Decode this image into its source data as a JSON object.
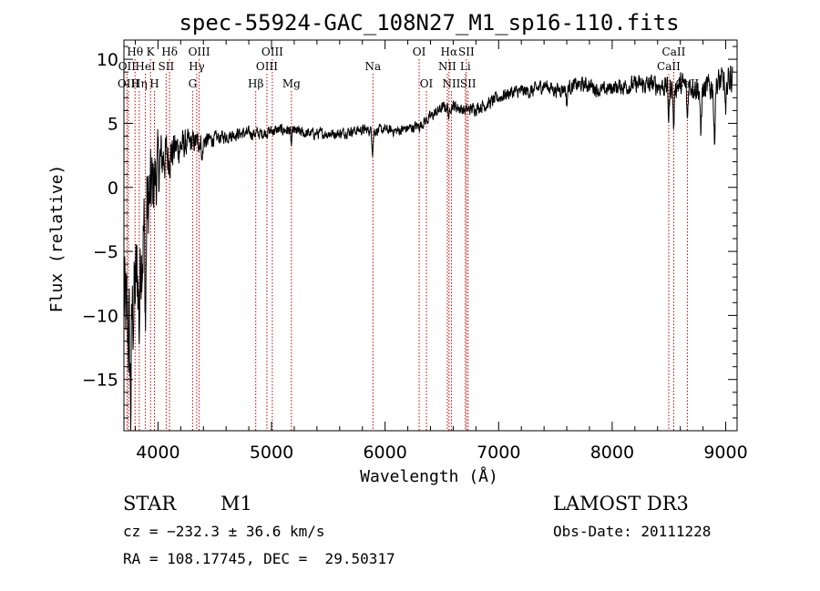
{
  "chart_data": {
    "type": "line",
    "title": "spec-55924-GAC_108N27_M1_sp16-110.fits",
    "xlabel": "Wavelength (Å)",
    "ylabel": "Flux (relative)",
    "xlim": [
      3700,
      9100
    ],
    "ylim": [
      -19,
      11.5
    ],
    "xticks": [
      4000,
      5000,
      6000,
      7000,
      8000,
      9000
    ],
    "xtick_labels": [
      "4000",
      "5000",
      "6000",
      "7000",
      "8000",
      "9000"
    ],
    "yticks": [
      -15,
      -10,
      -5,
      0,
      5,
      10
    ],
    "ytick_labels": [
      "−15",
      "−10",
      "−5",
      "0",
      "5",
      "10"
    ],
    "line_color": "#000000",
    "marker_color": "#cc0000",
    "spectrum_knots": {
      "x": [
        3700,
        3750,
        3800,
        3850,
        3900,
        3950,
        4000,
        4050,
        4100,
        4150,
        4200,
        4300,
        4400,
        4500,
        4600,
        4700,
        4800,
        4900,
        5000,
        5100,
        5200,
        5300,
        5400,
        5500,
        5600,
        5700,
        5800,
        5900,
        6000,
        6100,
        6200,
        6300,
        6400,
        6500,
        6600,
        6700,
        6800,
        6900,
        7000,
        7100,
        7200,
        7300,
        7400,
        7500,
        7600,
        7700,
        7800,
        7900,
        8000,
        8100,
        8200,
        8300,
        8400,
        8500,
        8600,
        8700,
        8800,
        8900,
        9000,
        9100
      ],
      "y": [
        -9,
        -12,
        -8,
        -5,
        -2,
        0,
        1.5,
        2.5,
        2.5,
        3,
        3.2,
        3.5,
        3.6,
        3.8,
        4,
        4.2,
        4.2,
        4.2,
        4.4,
        4.5,
        4.4,
        4.2,
        4.2,
        4.2,
        4.2,
        4.4,
        4.5,
        4.4,
        4.5,
        4.4,
        4.6,
        4.8,
        5.5,
        6.2,
        6.4,
        6.0,
        6.2,
        6.5,
        7,
        7.4,
        7.5,
        7.5,
        8.0,
        7.6,
        7.8,
        8.0,
        8.0,
        7.5,
        7.8,
        7.9,
        8.0,
        8.0,
        8.0,
        7.8,
        8.0,
        8.0,
        7.5,
        8.0,
        8.3,
        9.0
      ]
    },
    "noise_amplitude": {
      "x": [
        3700,
        3900,
        4000,
        4100,
        4300,
        4500,
        5000,
        6000,
        7000,
        8000,
        8500,
        9000,
        9100
      ],
      "amp": [
        7,
        6,
        4,
        2.5,
        1.4,
        0.8,
        0.7,
        0.6,
        0.8,
        0.9,
        1.3,
        1.8,
        2
      ]
    },
    "absorption_features": [
      {
        "x": 3760,
        "depth": 6
      },
      {
        "x": 3835,
        "depth": 5
      },
      {
        "x": 3890,
        "depth": 8
      },
      {
        "x": 4390,
        "depth": 1.5
      },
      {
        "x": 5175,
        "depth": 1.2
      },
      {
        "x": 5890,
        "depth": 1.6
      },
      {
        "x": 6563,
        "depth": 1.0
      },
      {
        "x": 7600,
        "depth": 1.4
      },
      {
        "x": 8498,
        "depth": 2.5
      },
      {
        "x": 8542,
        "depth": 3.5
      },
      {
        "x": 8662,
        "depth": 3.0
      },
      {
        "x": 8780,
        "depth": 4.0
      },
      {
        "x": 8900,
        "depth": 5.0
      },
      {
        "x": 9000,
        "depth": 3.5
      }
    ],
    "spectral_lines": [
      {
        "label": "Hθ",
        "x": 3798,
        "row": 0
      },
      {
        "label": "OII",
        "x": 3727,
        "row": 1
      },
      {
        "label": "OIII",
        "x": 3740,
        "row": 2
      },
      {
        "label": "Hη",
        "x": 3835,
        "row": 2
      },
      {
        "label": "K",
        "x": 3934,
        "row": 0
      },
      {
        "label": "HeI",
        "x": 3889,
        "row": 1
      },
      {
        "label": "H",
        "x": 3969,
        "row": 2
      },
      {
        "label": "Hδ",
        "x": 4102,
        "row": 0
      },
      {
        "label": "SII",
        "x": 4072,
        "row": 1
      },
      {
        "label": "OIII",
        "x": 4363,
        "row": 0
      },
      {
        "label": "Hγ",
        "x": 4341,
        "row": 1
      },
      {
        "label": "G",
        "x": 4305,
        "row": 2
      },
      {
        "label": "Hβ",
        "x": 4861,
        "row": 2
      },
      {
        "label": "OIII",
        "x": 5007,
        "row": 0
      },
      {
        "label": "OIII",
        "x": 4959,
        "row": 1
      },
      {
        "label": "Mg",
        "x": 5175,
        "row": 2
      },
      {
        "label": "Na",
        "x": 5893,
        "row": 1
      },
      {
        "label": "OI",
        "x": 6300,
        "row": 0
      },
      {
        "label": "OI",
        "x": 6364,
        "row": 2
      },
      {
        "label": "Hα",
        "x": 6563,
        "row": 0
      },
      {
        "label": "NII",
        "x": 6548,
        "row": 1
      },
      {
        "label": "NII",
        "x": 6584,
        "row": 2
      },
      {
        "label": "SII",
        "x": 6716,
        "row": 0
      },
      {
        "label": "Li",
        "x": 6707,
        "row": 1
      },
      {
        "label": "SII",
        "x": 6731,
        "row": 2
      },
      {
        "label": "CaII",
        "x": 8542,
        "row": 0
      },
      {
        "label": "CaII",
        "x": 8498,
        "row": 1
      },
      {
        "label": "CaII",
        "x": 8662,
        "row": 2
      }
    ]
  },
  "info": {
    "class": "STAR",
    "subclass": "M1",
    "survey": "LAMOST DR3",
    "cz": "cz = −232.3 ± 36.6 km/s",
    "obs_date": "Obs-Date: 20111228",
    "radec": "RA = 108.17745, DEC =  29.50317"
  }
}
